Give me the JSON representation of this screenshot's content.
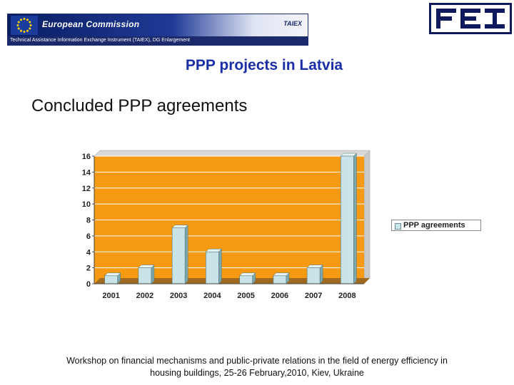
{
  "header": {
    "ec_title": "European Commission",
    "ec_subtitle": "Technical Assistance Information Exchange Instrument (TAIEX), DG Enlargement",
    "taiex_logo": "TAIEX",
    "fei_logo_text": "FEI"
  },
  "page": {
    "title": "PPP projects in Latvia",
    "heading": "Concluded PPP agreements"
  },
  "chart_data": {
    "type": "bar",
    "categories": [
      "2001",
      "2002",
      "2003",
      "2004",
      "2005",
      "2006",
      "2007",
      "2008"
    ],
    "series": [
      {
        "name": "PPP agreements",
        "values": [
          1,
          2,
          7,
          4,
          1,
          1,
          2,
          16
        ]
      }
    ],
    "title": "",
    "xlabel": "",
    "ylabel": "",
    "ylim": [
      0,
      16
    ],
    "yticks": [
      "0",
      "2",
      "4",
      "6",
      "8",
      "10",
      "12",
      "14",
      "16"
    ],
    "grid": true,
    "legend_position": "right",
    "colors": {
      "plot_background": "#f59a12",
      "bar_front": "#c8e4e8",
      "bar_side": "#7aa6ad",
      "bar_top": "#e6f4f6",
      "gridline": "#ffffff"
    }
  },
  "footer": {
    "line1": "Workshop on financial mechanisms and public-private relations in the field of energy efficiency in",
    "line2": "housing buildings, 25-26 February,2010, Kiev, Ukraine"
  }
}
